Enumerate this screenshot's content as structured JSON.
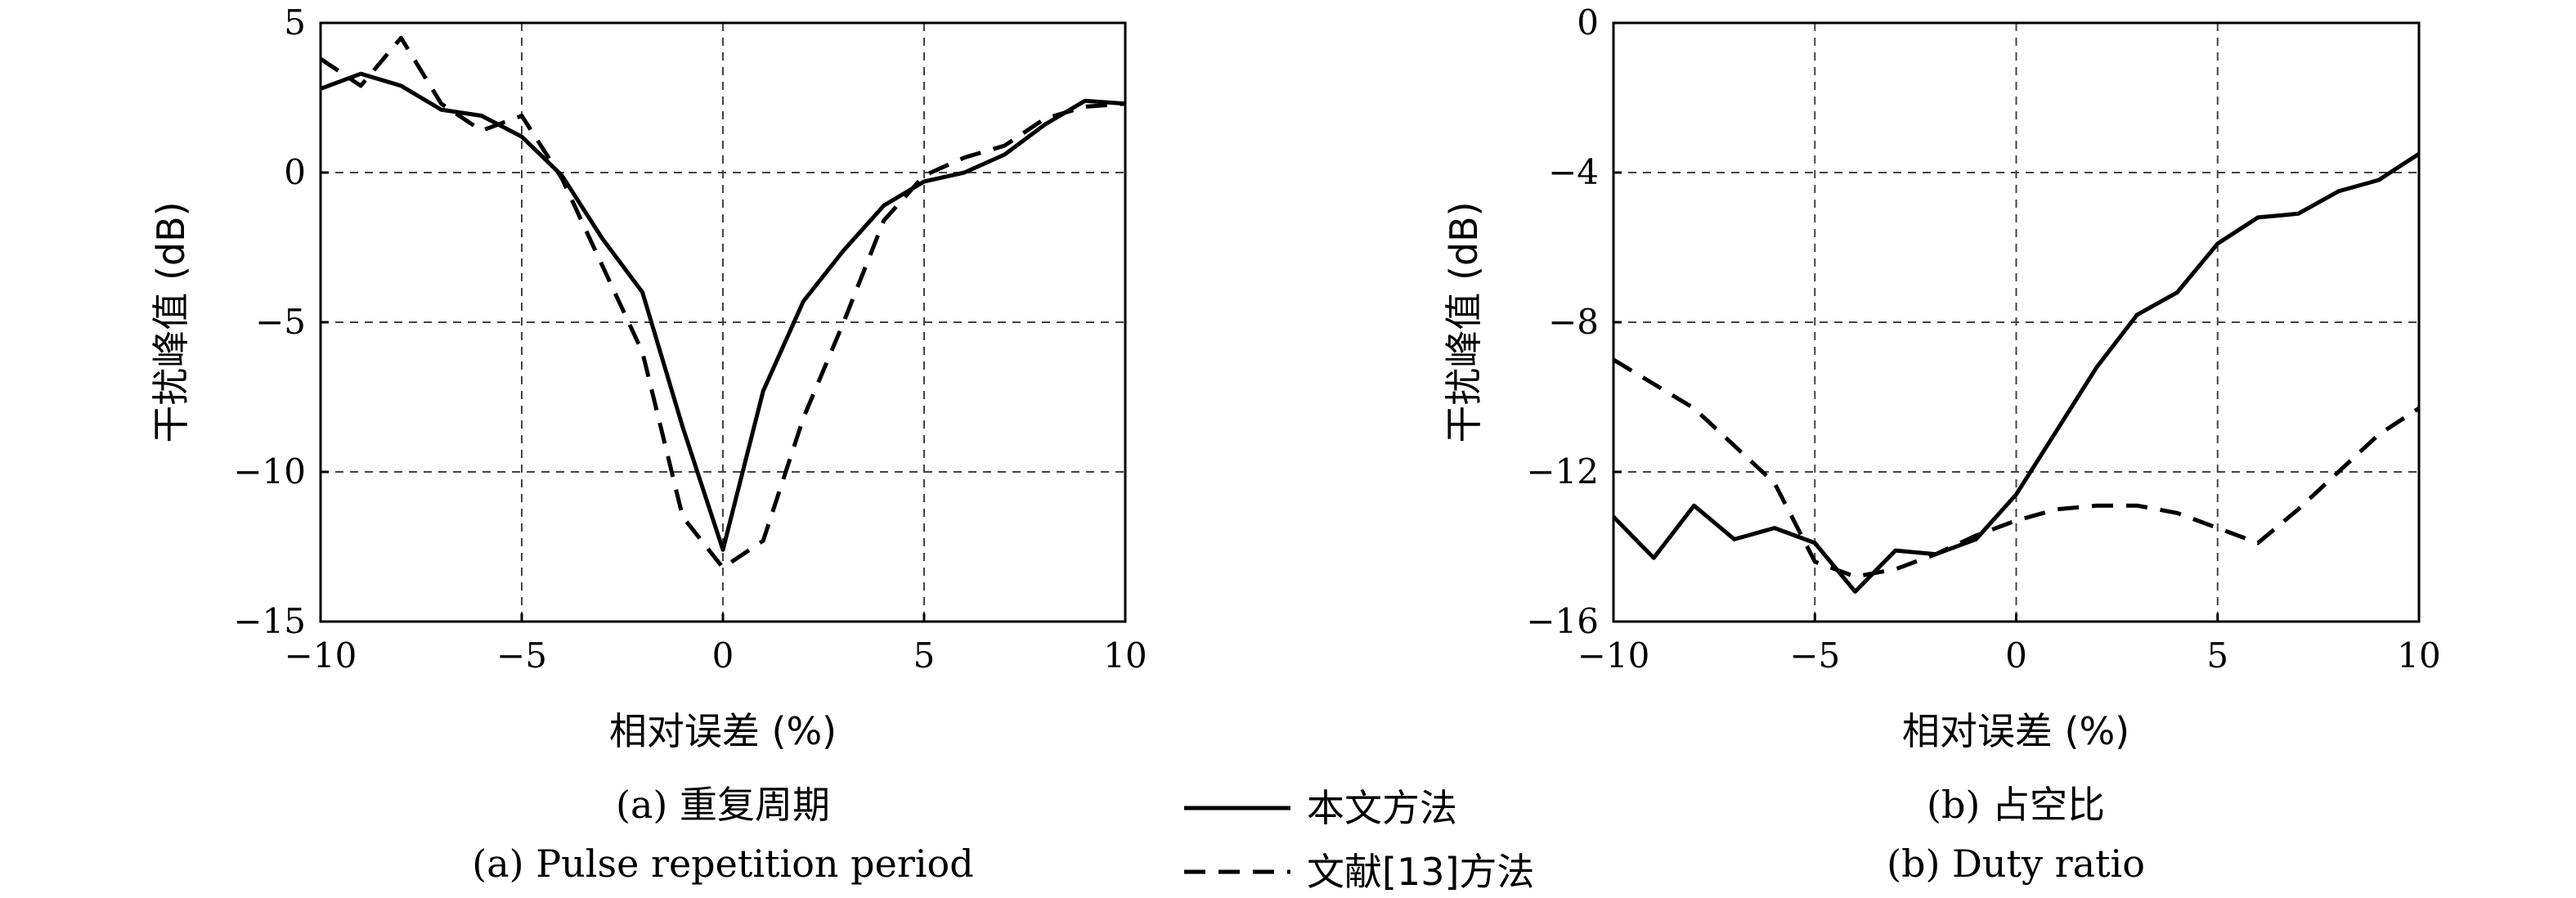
{
  "legend": {
    "entries": [
      {
        "label": "本文方法",
        "style": "solid"
      },
      {
        "label": "文献[13]方法",
        "style": "dashed"
      }
    ]
  },
  "chart_data": [
    {
      "type": "line",
      "caption_cn": "(a) 重复周期",
      "caption_en": "(a) Pulse repetition period",
      "xlabel": "相对误差 (%)",
      "ylabel": "干扰峰值 (dB)",
      "xlim": [
        -10,
        10
      ],
      "ylim": [
        -15,
        5
      ],
      "xticks": [
        -10,
        -5,
        0,
        5,
        10
      ],
      "yticks": [
        5,
        0,
        -5,
        -10,
        -15
      ],
      "xtick_labels": [
        "−10",
        "−5",
        "0",
        "5",
        "10"
      ],
      "ytick_labels": [
        "5",
        "0",
        "−5",
        "−10",
        "−15"
      ],
      "grid": true,
      "series": [
        {
          "name": "本文方法",
          "style": "solid",
          "x": [
            -10,
            -9,
            -8,
            -7,
            -6,
            -5,
            -4,
            -3,
            -2,
            -1,
            0,
            1,
            2,
            3,
            4,
            5,
            6,
            7,
            8,
            9,
            10
          ],
          "y": [
            2.8,
            3.3,
            2.9,
            2.1,
            1.9,
            1.2,
            -0.1,
            -2.2,
            -4.0,
            -8.5,
            -12.6,
            -7.3,
            -4.3,
            -2.6,
            -1.1,
            -0.3,
            0.0,
            0.6,
            1.6,
            2.4,
            2.3
          ]
        },
        {
          "name": "文献[13]方法",
          "style": "dashed",
          "x": [
            -10,
            -9,
            -8,
            -7,
            -6,
            -5,
            -4,
            -3,
            -2,
            -1,
            0,
            1,
            2,
            3,
            4,
            5,
            6,
            7,
            8,
            9,
            10
          ],
          "y": [
            3.8,
            2.9,
            4.5,
            2.3,
            1.4,
            1.9,
            -0.2,
            -3.1,
            -6.0,
            -11.5,
            -13.2,
            -12.3,
            -8.2,
            -5.0,
            -1.6,
            -0.1,
            0.5,
            0.9,
            1.8,
            2.2,
            2.3
          ]
        }
      ]
    },
    {
      "type": "line",
      "caption_cn": "(b) 占空比",
      "caption_en": "(b) Duty ratio",
      "xlabel": "相对误差 (%)",
      "ylabel": "干扰峰值 (dB)",
      "xlim": [
        -10,
        10
      ],
      "ylim": [
        -16,
        0
      ],
      "xticks": [
        -10,
        -5,
        0,
        5,
        10
      ],
      "yticks": [
        0,
        -4,
        -8,
        -12,
        -16
      ],
      "xtick_labels": [
        "−10",
        "−5",
        "0",
        "5",
        "10"
      ],
      "ytick_labels": [
        "0",
        "−4",
        "−8",
        "−12",
        "−16"
      ],
      "grid": true,
      "series": [
        {
          "name": "本文方法",
          "style": "solid",
          "x": [
            -10,
            -9,
            -8,
            -7,
            -6,
            -5,
            -4,
            -3,
            -2,
            -1,
            0,
            1,
            2,
            3,
            4,
            5,
            6,
            7,
            8,
            9,
            10
          ],
          "y": [
            -13.2,
            -14.3,
            -12.9,
            -13.8,
            -13.5,
            -13.9,
            -15.2,
            -14.1,
            -14.2,
            -13.8,
            -12.6,
            -10.9,
            -9.2,
            -7.8,
            -7.2,
            -5.9,
            -5.2,
            -5.1,
            -4.5,
            -4.2,
            -3.5
          ]
        },
        {
          "name": "文献[13]方法",
          "style": "dashed",
          "x": [
            -10,
            -8,
            -6,
            -5,
            -4,
            -3,
            -2,
            -1,
            0,
            1,
            2,
            3,
            4,
            5,
            6,
            7,
            8,
            9,
            10
          ],
          "y": [
            -9.0,
            -10.3,
            -12.3,
            -14.4,
            -14.8,
            -14.6,
            -14.2,
            -13.7,
            -13.3,
            -13.0,
            -12.9,
            -12.9,
            -13.1,
            -13.5,
            -13.9,
            -13.0,
            -12.0,
            -11.0,
            -10.3
          ]
        }
      ]
    }
  ]
}
